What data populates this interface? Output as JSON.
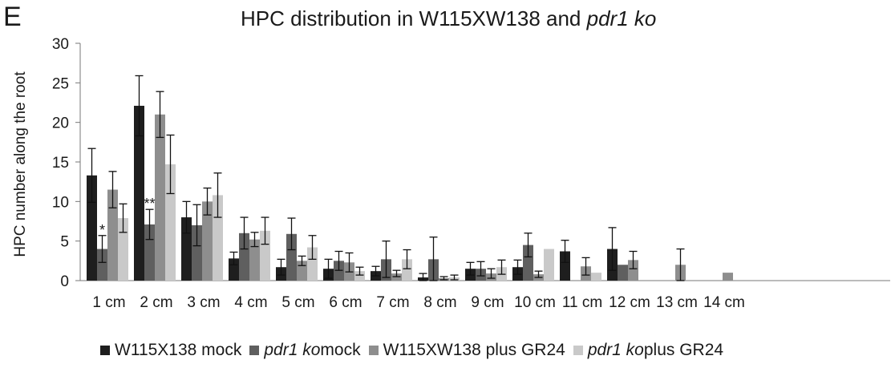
{
  "panel_letter": "E",
  "chart_data": {
    "type": "bar",
    "title_prefix": "HPC distribution in W115XW138 and ",
    "title_italic": "pdr1 ko",
    "ylabel": "HPC number along the root",
    "xlabel": "",
    "ylim": [
      0,
      30
    ],
    "yticks": [
      0,
      5,
      10,
      15,
      20,
      25,
      30
    ],
    "categories": [
      "1 cm",
      "2 cm",
      "3 cm",
      "4 cm",
      "5 cm",
      "6 cm",
      "7 cm",
      "8 cm",
      "9 cm",
      "10 cm",
      "11 cm",
      "12 cm",
      "13 cm",
      "14 cm"
    ],
    "legend_position": "bottom",
    "series": [
      {
        "legend_italic": "",
        "legend_text": "W115X138 mock",
        "color": "#1e1e1e",
        "values": [
          13.3,
          22.1,
          8.0,
          2.8,
          1.7,
          1.5,
          1.2,
          0.4,
          1.5,
          1.7,
          3.7,
          4.0,
          0,
          0
        ],
        "errors": [
          3.4,
          3.8,
          2.0,
          0.8,
          1.0,
          1.2,
          0.6,
          0.5,
          0.8,
          0.9,
          1.4,
          2.7,
          0,
          0
        ]
      },
      {
        "legend_italic": "pdr1 ko",
        "legend_text": " mock",
        "color": "#5f5f5f",
        "values": [
          4.0,
          7.1,
          7.0,
          6.0,
          5.9,
          2.5,
          2.7,
          2.7,
          1.5,
          4.5,
          0,
          2.0,
          0,
          0
        ],
        "errors": [
          1.7,
          1.9,
          2.6,
          2.0,
          2.0,
          1.2,
          2.3,
          2.8,
          0.9,
          1.5,
          0,
          0,
          0,
          0
        ]
      },
      {
        "legend_italic": "",
        "legend_text": "W115XW138 plus GR24",
        "color": "#8e8e8e",
        "values": [
          11.5,
          21.0,
          10.0,
          5.2,
          2.5,
          2.3,
          0.9,
          0.3,
          0.9,
          0.8,
          1.8,
          2.6,
          2.0,
          1.0
        ],
        "errors": [
          2.3,
          2.9,
          1.7,
          0.9,
          0.6,
          1.2,
          0.4,
          0.2,
          0.6,
          0.4,
          1.1,
          1.1,
          2.0,
          0
        ]
      },
      {
        "legend_italic": "pdr1 ko",
        "legend_text": " plus GR24",
        "color": "#c9c9c9",
        "values": [
          7.9,
          14.7,
          10.8,
          6.3,
          4.2,
          1.2,
          2.7,
          0.4,
          1.7,
          4.0,
          1.0,
          0,
          0,
          0
        ],
        "errors": [
          1.8,
          3.7,
          2.8,
          1.7,
          1.5,
          0.5,
          1.2,
          0.3,
          0.9,
          0,
          0,
          0,
          0,
          0
        ]
      }
    ],
    "annotations": [
      {
        "text": "*",
        "category_index": 0,
        "series_index": 1
      },
      {
        "text": "**",
        "category_index": 1,
        "series_index": 1
      }
    ]
  }
}
